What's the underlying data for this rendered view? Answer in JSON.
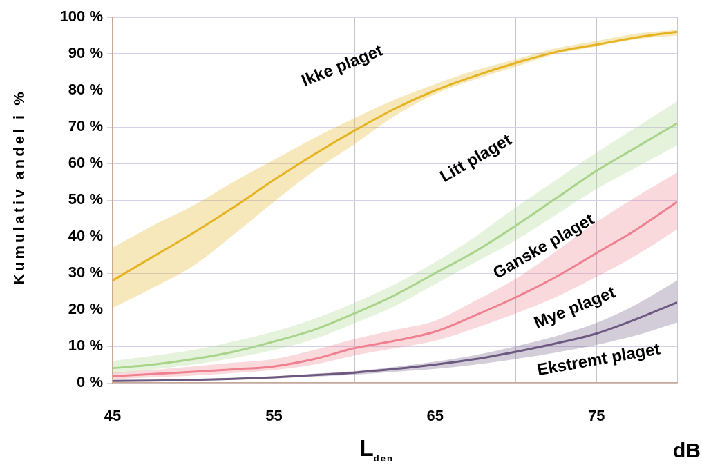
{
  "chart_data": {
    "type": "line",
    "xlabel": "L$_{den}$",
    "ylabel": "Kumulativ andel i %",
    "x": [
      45,
      47.5,
      50,
      52.5,
      55,
      57.5,
      60,
      62.5,
      65,
      67.5,
      70,
      72.5,
      75,
      77.5,
      80
    ],
    "xlim": [
      45,
      80
    ],
    "xticks": [
      45,
      {
        "value": 50,
        "label": null
      },
      55,
      {
        "value": 60,
        "label": null
      },
      65,
      {
        "value": 70,
        "label": null
      },
      75,
      {
        "value": 80,
        "label": null
      }
    ],
    "ylim": [
      0,
      100
    ],
    "yticks": [
      {
        "value": 0,
        "label": "0 %"
      },
      {
        "value": 10,
        "label": "10 %"
      },
      {
        "value": 20,
        "label": "20 %"
      },
      {
        "value": 30,
        "label": "30 %"
      },
      {
        "value": 40,
        "label": "40 %"
      },
      {
        "value": 50,
        "label": "50 %"
      },
      {
        "value": 60,
        "label": "60 %"
      },
      {
        "value": 70,
        "label": "70 %"
      },
      {
        "value": 80,
        "label": "80 %"
      },
      {
        "value": 90,
        "label": "90 %"
      },
      {
        "value": 100,
        "label": "100 %"
      }
    ],
    "grid": true,
    "marker": "none",
    "line_style": "solid",
    "series": [
      {
        "color": "#e6b422",
        "values": [
          28,
          34.5,
          41,
          48,
          55.5,
          62.5,
          69,
          75,
          80,
          84,
          87.5,
          90.5,
          92.5,
          94.5,
          96
        ],
        "lower": [
          20.5,
          26,
          32,
          40.5,
          49.5,
          58,
          65.3,
          73,
          79,
          83,
          86.5,
          90,
          92,
          94,
          95
        ],
        "upper": [
          37,
          43,
          48.5,
          55,
          61,
          67,
          72.4,
          77.5,
          81.7,
          85.5,
          88.5,
          91.5,
          93.5,
          95.5,
          96.5
        ]
      },
      {
        "color": "#a8d48a",
        "values": [
          4,
          5,
          6.5,
          8.5,
          11.3,
          14.5,
          19,
          24,
          30,
          36,
          43,
          50.5,
          58,
          64.5,
          71
        ],
        "lower": [
          2.5,
          3.7,
          5,
          6.8,
          9,
          12,
          16.3,
          21,
          27,
          33,
          39,
          46,
          53,
          59,
          65
        ],
        "upper": [
          6,
          7.4,
          9,
          11.3,
          14,
          17.5,
          21.9,
          27,
          33,
          40,
          48,
          55.5,
          63,
          70,
          77
        ]
      },
      {
        "color": "#f08090",
        "values": [
          1.8,
          2.4,
          3,
          3.7,
          4.5,
          6.5,
          9.5,
          11.5,
          14,
          18.5,
          23.4,
          29,
          35.5,
          42,
          49.5
        ],
        "lower": [
          1,
          1.5,
          2,
          2.7,
          3.5,
          5,
          7.5,
          9.5,
          11.5,
          15,
          19,
          23.5,
          29,
          35,
          42
        ],
        "upper": [
          2.8,
          3.6,
          4.5,
          5.5,
          6.5,
          9,
          12,
          14.5,
          17,
          22.5,
          28.5,
          36,
          44,
          51,
          57.5
        ]
      },
      {
        "color": "#6e5a80",
        "values": [
          0.5,
          0.6,
          0.8,
          1.1,
          1.5,
          2.1,
          2.8,
          3.8,
          5,
          6.5,
          8.5,
          10.8,
          13.5,
          17.5,
          22
        ],
        "lower": [
          0.3,
          0.4,
          0.5,
          0.8,
          1.2,
          1.7,
          2.2,
          3,
          3.8,
          5,
          6.5,
          8.3,
          10.4,
          13,
          16.5
        ],
        "upper": [
          0.7,
          0.8,
          1,
          1.4,
          1.8,
          2.5,
          3.2,
          4.4,
          5.8,
          7.6,
          10,
          12.8,
          16.4,
          21.5,
          28
        ]
      }
    ],
    "annotations": [
      "Ikke plaget",
      "Litt plaget",
      "Ganske plaget",
      "Mye plaget",
      "Ekstremt plaget",
      "dB"
    ]
  }
}
